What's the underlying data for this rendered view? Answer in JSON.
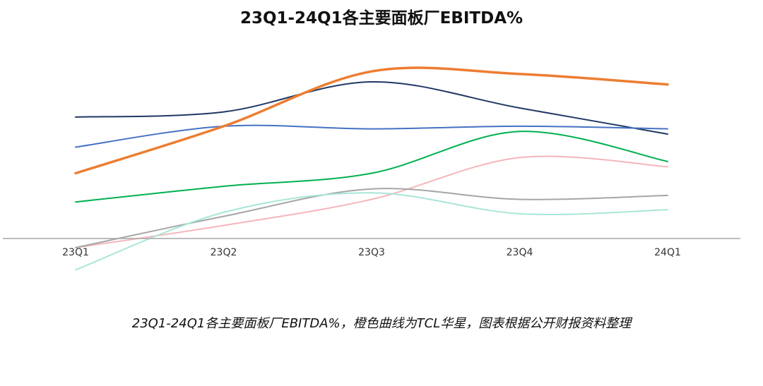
{
  "chart_data": {
    "type": "line",
    "title": "23Q1-24Q1各主要面板厂EBITDA%",
    "caption": "23Q1-24Q1各主要面板厂EBITDA%，橙色曲线为TCL华星，图表根据公开财报资料整理",
    "categories": [
      "23Q1",
      "23Q2",
      "23Q3",
      "23Q4",
      "24Q1"
    ],
    "xlabel": "",
    "ylabel": "",
    "ylim": [
      -2,
      13
    ],
    "grid": false,
    "legend": "none",
    "curve": "smooth",
    "series": [
      {
        "color": "#1f3864",
        "width": 2,
        "values": [
          9.3,
          9.7,
          12.0,
          10.0,
          8.0
        ]
      },
      {
        "color": "#4472c4",
        "width": 2,
        "values": [
          7.0,
          8.6,
          8.4,
          8.6,
          8.4
        ]
      },
      {
        "color": "#ed7d31",
        "width": 3.5,
        "values": [
          5.0,
          8.6,
          12.8,
          12.6,
          11.8
        ]
      },
      {
        "color": "#00b050",
        "width": 2,
        "values": [
          2.8,
          4.0,
          5.0,
          8.2,
          5.9
        ]
      },
      {
        "color": "#f4b6bb",
        "width": 2,
        "values": [
          -0.7,
          1.0,
          3.0,
          6.2,
          5.5
        ]
      },
      {
        "color": "#a6a6a6",
        "width": 2,
        "values": [
          -0.7,
          1.7,
          3.8,
          3.0,
          3.3
        ]
      },
      {
        "color": "#a8e6d8",
        "width": 2,
        "values": [
          -2.4,
          2.0,
          3.5,
          1.9,
          2.2
        ]
      }
    ]
  }
}
